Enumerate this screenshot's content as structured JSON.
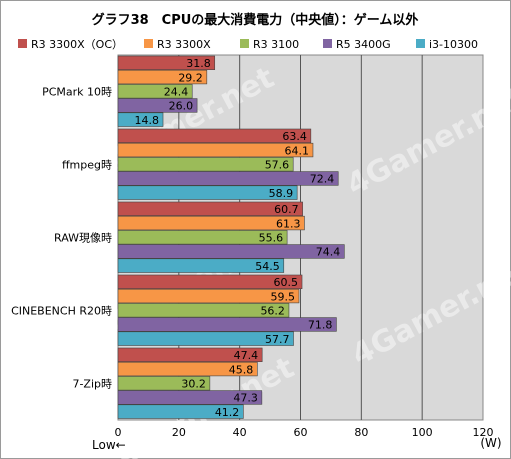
{
  "chart_data": {
    "type": "bar",
    "orientation": "horizontal",
    "title": "グラフ38　CPUの最大消費電力（中央値）：ゲーム以外",
    "categories": [
      "PCMark 10時",
      "ffmpeg時",
      "RAW現像時",
      "CINEBENCH R20時",
      "7-Zip時"
    ],
    "series": [
      {
        "name": "R3 3300X（OC）",
        "color": "#c0504d",
        "values": [
          31.8,
          63.4,
          60.7,
          60.5,
          47.4
        ]
      },
      {
        "name": "R3 3300X",
        "color": "#f79646",
        "values": [
          29.2,
          64.1,
          61.3,
          59.5,
          45.8
        ]
      },
      {
        "name": "R3 3100",
        "color": "#9bbb59",
        "values": [
          24.4,
          57.6,
          55.6,
          56.2,
          30.2
        ]
      },
      {
        "name": "R5 3400G",
        "color": "#8064a2",
        "values": [
          26.0,
          72.4,
          74.4,
          71.8,
          47.3
        ]
      },
      {
        "name": "i3-10300",
        "color": "#4bacc6",
        "values": [
          14.8,
          58.9,
          54.5,
          57.7,
          41.2
        ]
      }
    ],
    "xlim": [
      0,
      120
    ],
    "xticks": [
      0,
      20,
      40,
      60,
      80,
      100,
      120
    ],
    "xunit": "(W)",
    "direction_label": "Low←",
    "grid": true,
    "legend_position": "top",
    "watermark": "4Gamer.net"
  }
}
